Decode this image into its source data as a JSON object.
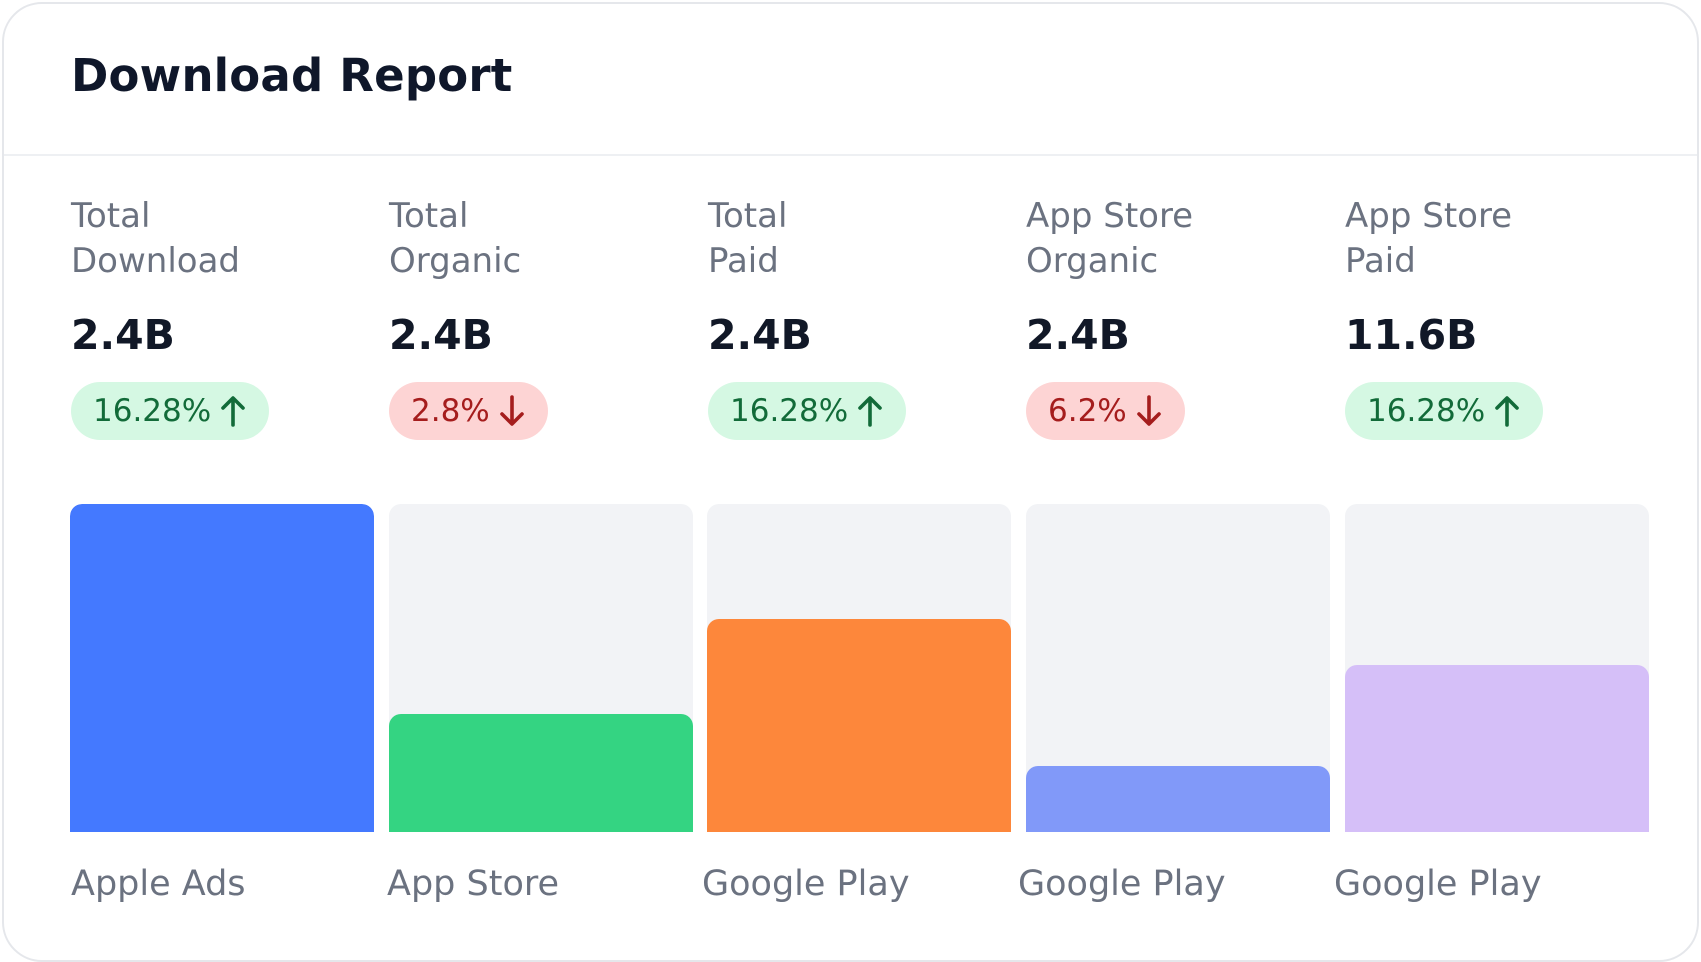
{
  "header": {
    "title": "Download Report"
  },
  "metrics": [
    {
      "label_line1": "Total",
      "label_line2": "Download",
      "value": "2.4B",
      "change": "16.28%",
      "direction": "up"
    },
    {
      "label_line1": "Total",
      "label_line2": "Organic",
      "value": "2.4B",
      "change": "2.8%",
      "direction": "down"
    },
    {
      "label_line1": "Total",
      "label_line2": "Paid",
      "value": "2.4B",
      "change": "16.28%",
      "direction": "up"
    },
    {
      "label_line1": "App Store",
      "label_line2": "Organic",
      "value": "2.4B",
      "change": "6.2%",
      "direction": "down"
    },
    {
      "label_line1": "App Store",
      "label_line2": "Paid",
      "value": "11.6B",
      "change": "16.28%",
      "direction": "up"
    }
  ],
  "chart_data": {
    "type": "bar",
    "categories": [
      "Apple Ads",
      "App Store",
      "Google Play",
      "Google Play",
      "Google Play"
    ],
    "values": [
      1.0,
      0.36,
      0.65,
      0.2,
      0.51
    ],
    "colors": [
      "#4479ff",
      "#34d482",
      "#fd873b",
      "#8199f9",
      "#d5bff8"
    ],
    "ylim": [
      0,
      1
    ]
  }
}
